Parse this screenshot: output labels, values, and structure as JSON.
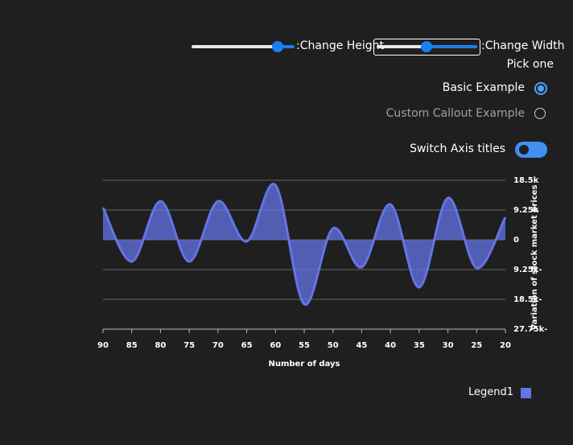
{
  "controls": {
    "height_label": ":Change Height",
    "width_label": ":Change Width",
    "pick_one": "Pick one",
    "options": [
      "Basic Example",
      "Custom Callout Example"
    ],
    "toggle_label": "Switch Axis titles"
  },
  "chart_data": {
    "type": "area",
    "x": [
      90,
      85,
      80,
      75,
      70,
      65,
      60,
      55,
      50,
      45,
      40,
      35,
      30,
      25,
      20
    ],
    "series": [
      {
        "name": "Legend1",
        "color": "#6474e5",
        "values": [
          10000,
          -6750,
          12000,
          -6750,
          12000,
          -500,
          17000,
          -20000,
          3500,
          -8500,
          11000,
          -14750,
          13000,
          -8750,
          7000
        ]
      }
    ],
    "xlim": [
      90,
      20
    ],
    "xticks": [
      90,
      85,
      80,
      75,
      70,
      65,
      60,
      55,
      50,
      45,
      40,
      35,
      30,
      25,
      20
    ],
    "ylim": [
      -27750,
      18500
    ],
    "yticks": [
      {
        "value": 18500,
        "label": "18.5k"
      },
      {
        "value": 9250,
        "label": "9.25k"
      },
      0,
      {
        "value": -9250,
        "label": "9.25k-"
      },
      {
        "value": -18500,
        "label": "18.5k-"
      },
      {
        "value": -27750,
        "label": "27.75k-"
      }
    ],
    "x_label": "Number of days",
    "y_label": "Variation of stock market prices",
    "grid": true
  }
}
